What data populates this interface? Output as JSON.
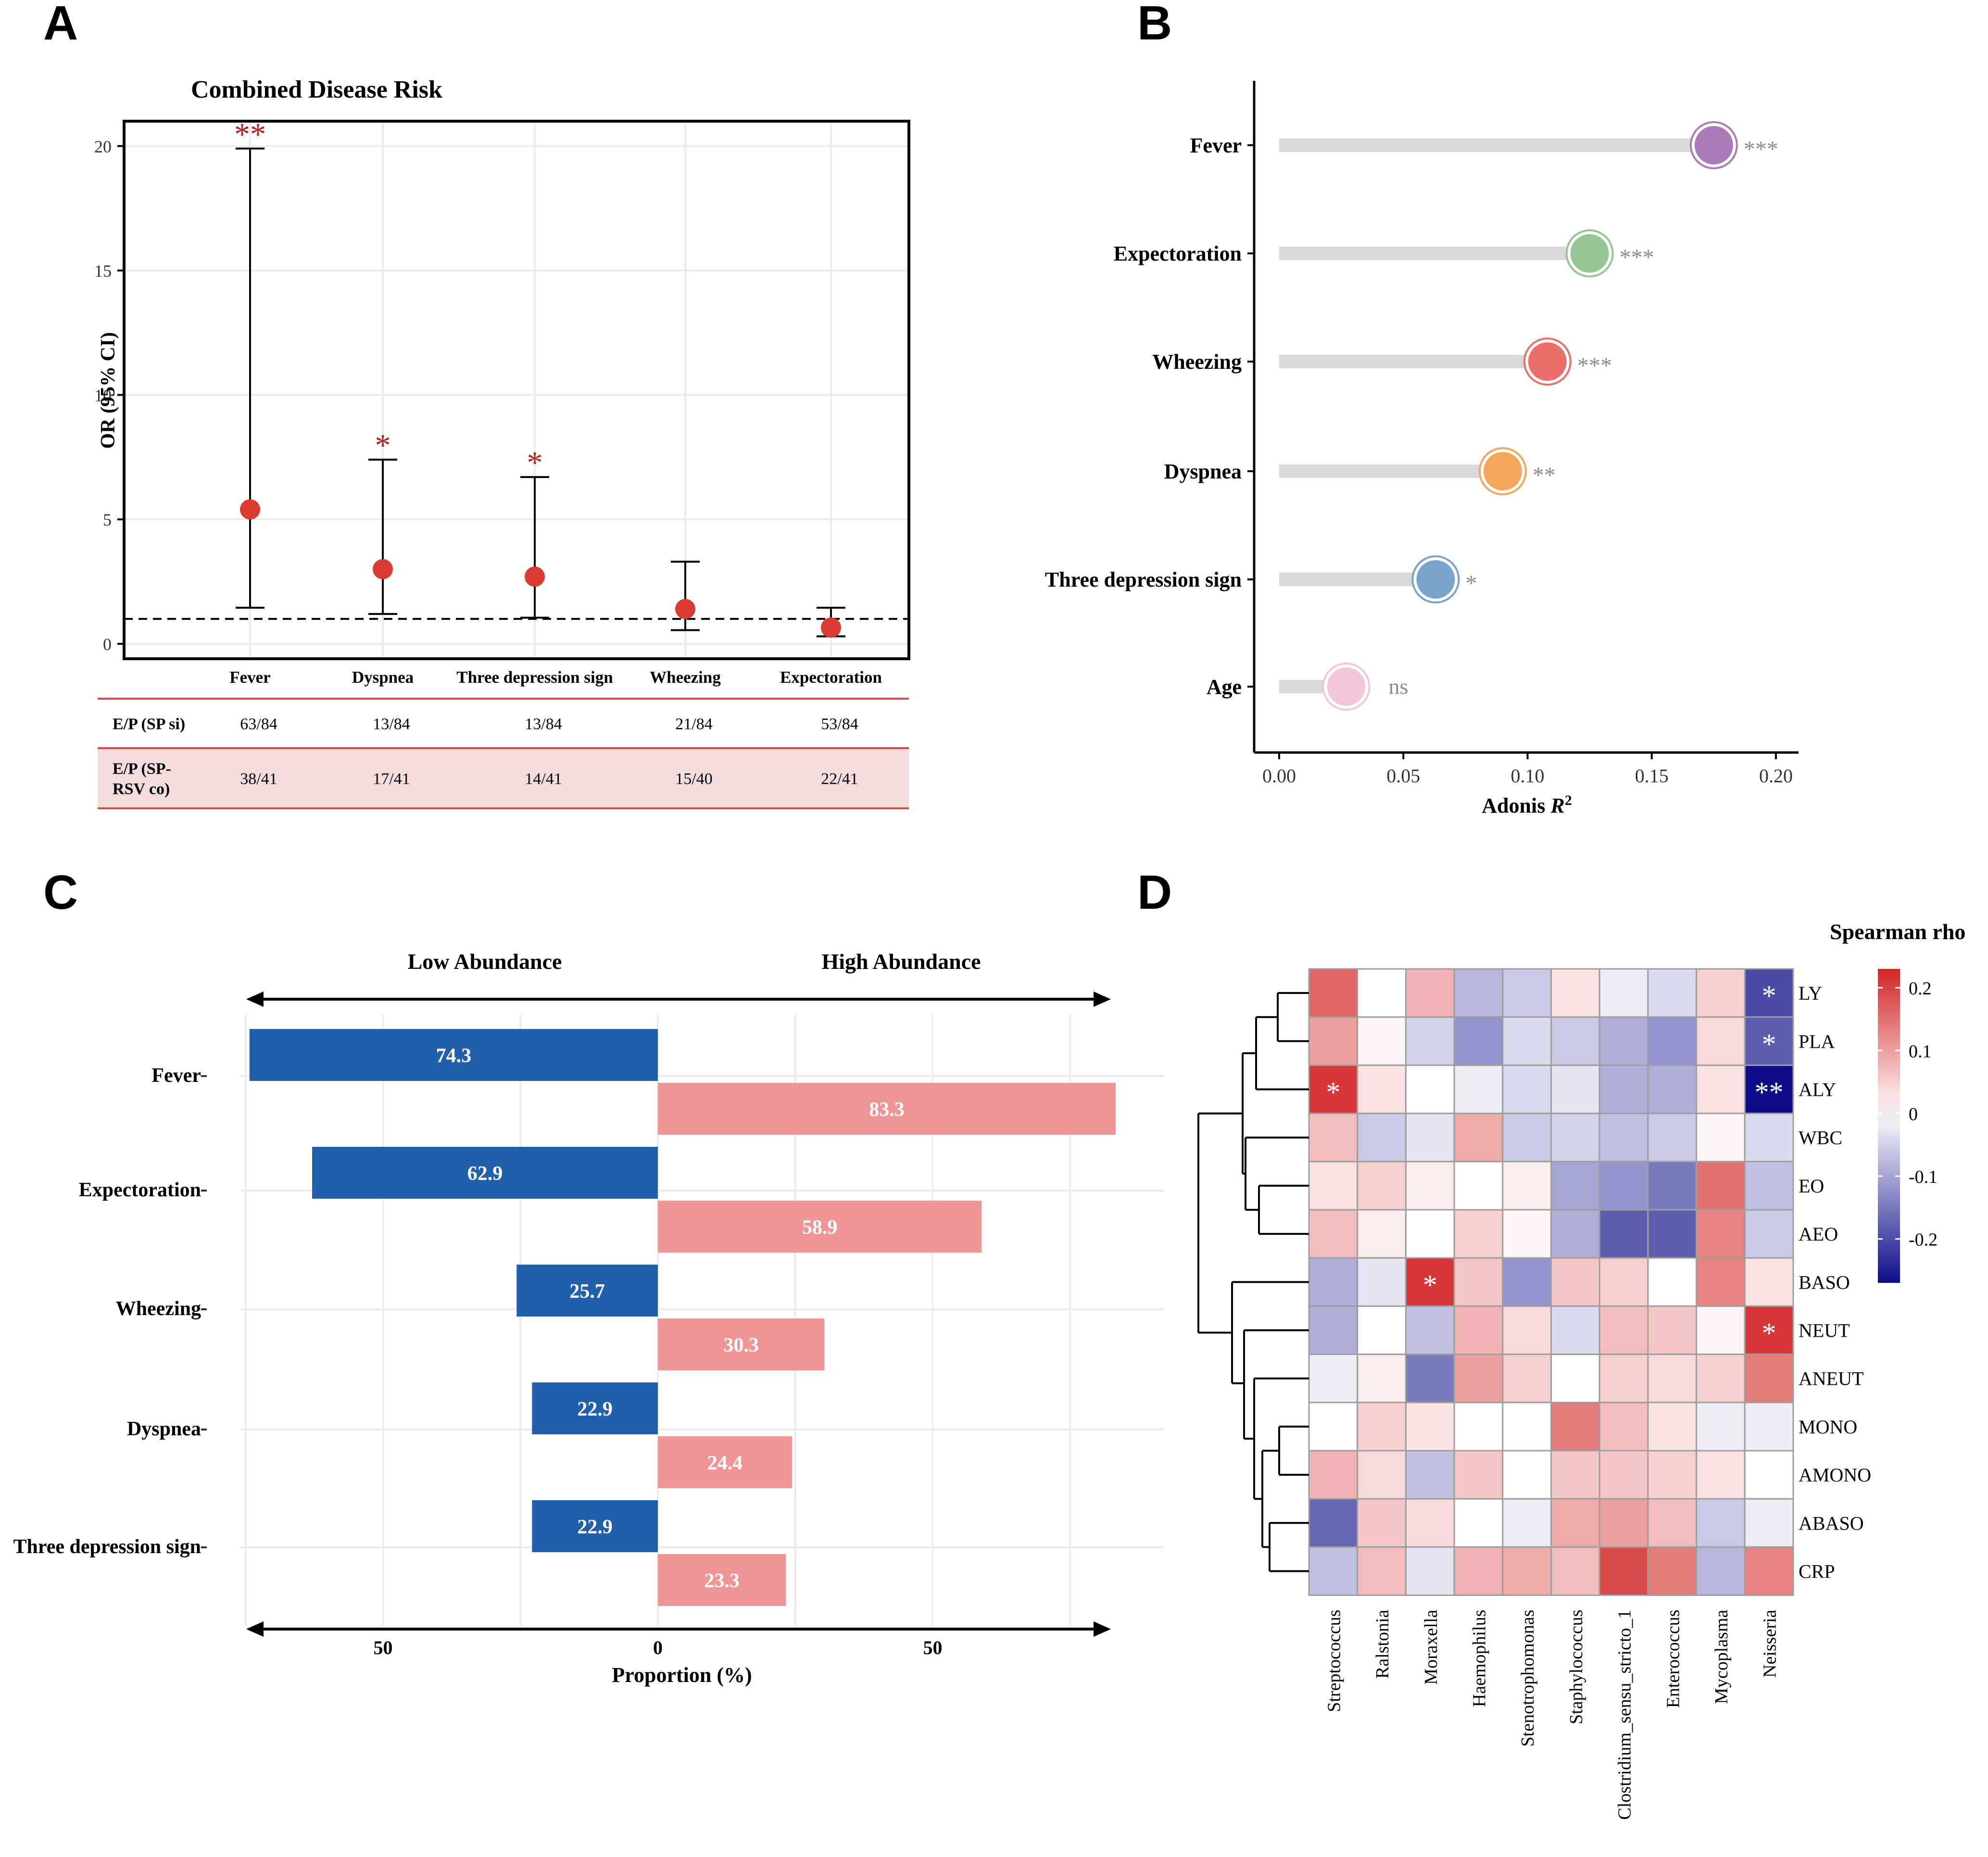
{
  "panel_labels": [
    "A",
    "B",
    "C",
    "D"
  ],
  "chart_data": [
    {
      "panel": "A",
      "type": "scatter",
      "title": "Combined Disease Risk",
      "ylabel": "OR (95% CI)",
      "ylim": [
        -0.6,
        21
      ],
      "yticks": [
        0,
        5,
        10,
        15,
        20
      ],
      "reference_line": 1,
      "categories": [
        "Fever",
        "Dyspnea",
        "Three depression sign",
        "Wheezing",
        "Expectoration"
      ],
      "or": [
        5.4,
        3.0,
        2.7,
        1.4,
        0.65
      ],
      "ci_low": [
        1.45,
        1.2,
        1.05,
        0.55,
        0.3
      ],
      "ci_high": [
        19.9,
        7.4,
        6.7,
        3.3,
        1.45
      ],
      "significance": [
        "**",
        "*",
        "*",
        "",
        ""
      ],
      "table": {
        "rows": [
          {
            "header": [
              "E/P (SP si)"
            ],
            "values": [
              "63/84",
              "13/84",
              "13/84",
              "21/84",
              "53/84"
            ]
          },
          {
            "header": [
              "E/P (SP-",
              "RSV co)"
            ],
            "values": [
              "38/41",
              "17/41",
              "14/41",
              "15/40",
              "22/41"
            ]
          }
        ]
      },
      "colors": {
        "point": "#d93a32",
        "star": "#b32222",
        "row_fill": "#f3dcdc",
        "row_line": "#d84a4a"
      }
    },
    {
      "panel": "B",
      "type": "scatter",
      "subtype": "lollipop",
      "xlabel": "Adonis R²",
      "xlabel_main": "Adonis ",
      "xlabel_italic": "R",
      "xlabel_sup": "2",
      "xlim": [
        -0.0055,
        0.2085
      ],
      "xticks": [
        0.0,
        0.05,
        0.1,
        0.15,
        0.2
      ],
      "xtick_labels": [
        "0.00",
        "0.05",
        "0.10",
        "0.15",
        "0.20"
      ],
      "categories": [
        "Fever",
        "Expectoration",
        "Wheezing",
        "Dyspnea",
        "Three depression sign",
        "Age"
      ],
      "values": [
        0.175,
        0.125,
        0.108,
        0.09,
        0.063,
        0.027
      ],
      "significance": [
        "***",
        "***",
        "***",
        "**",
        "*",
        "ns"
      ],
      "point_colors": [
        "#a97bb9",
        "#95c592",
        "#ea6e6a",
        "#f4a65b",
        "#7aa3cc",
        "#f4c6dc"
      ]
    },
    {
      "panel": "C",
      "type": "bar",
      "orientation": "horizontal",
      "xlabel": "Proportion (%)",
      "left_header": "Low Abundance",
      "right_header": "High Abundance",
      "xticks": [
        50,
        0,
        50
      ],
      "categories": [
        "Fever",
        "Expectoration",
        "Wheezing",
        "Dyspnea",
        "Three depression sign"
      ],
      "series": [
        {
          "name": "Low Abundance",
          "values": [
            74.3,
            62.9,
            25.7,
            22.9,
            22.9
          ],
          "color": "#2360ab"
        },
        {
          "name": "High Abundance",
          "values": [
            83.3,
            58.9,
            30.3,
            24.4,
            23.3
          ],
          "color": "#f09595"
        }
      ],
      "xlim": [
        -75,
        85
      ]
    },
    {
      "panel": "D",
      "type": "heatmap",
      "legend_title": "Spearman rho",
      "legend_ticks": [
        0.2,
        0.1,
        0,
        -0.1,
        -0.2
      ],
      "legend_tick_labels": [
        "0.2",
        "0.1",
        "0",
        "-0.1",
        "-0.2"
      ],
      "legend_range": [
        -0.27,
        0.23
      ],
      "rows": [
        "LY",
        "PLA",
        "ALY",
        "WBC",
        "EO",
        "AEO",
        "BASO",
        "NEUT",
        "ANEUT",
        "MONO",
        "AMONO",
        "ABASO",
        "CRP"
      ],
      "columns": [
        "Streptococcus",
        "Ralstonia",
        "Moraxella",
        "Haemophilus",
        "Stenotrophomonas",
        "Staphylococcus",
        "Clostridium_sensu_stricto_1",
        "Enterococcus",
        "Mycoplasma",
        "Neisseria"
      ],
      "values": [
        [
          0.16,
          0.0,
          0.08,
          -0.08,
          -0.06,
          0.03,
          -0.02,
          -0.04,
          0.05,
          -0.2
        ],
        [
          0.1,
          0.01,
          -0.05,
          -0.12,
          -0.04,
          -0.06,
          -0.09,
          -0.12,
          0.04,
          -0.18
        ],
        [
          0.21,
          0.03,
          0.0,
          -0.02,
          -0.04,
          -0.03,
          -0.09,
          -0.09,
          0.03,
          -0.27
        ],
        [
          0.07,
          -0.06,
          -0.03,
          0.09,
          -0.06,
          -0.05,
          -0.07,
          -0.06,
          0.01,
          -0.04
        ],
        [
          0.03,
          0.05,
          0.02,
          0.0,
          0.02,
          -0.1,
          -0.12,
          -0.15,
          0.15,
          -0.07
        ],
        [
          0.07,
          0.02,
          0.0,
          0.05,
          0.01,
          -0.09,
          -0.18,
          -0.18,
          0.13,
          -0.06
        ],
        [
          -0.09,
          -0.03,
          0.21,
          0.06,
          -0.12,
          0.06,
          0.05,
          0.0,
          0.13,
          0.03
        ],
        [
          -0.09,
          0.0,
          -0.07,
          0.08,
          0.04,
          -0.04,
          0.07,
          0.06,
          0.01,
          0.21
        ],
        [
          -0.02,
          0.02,
          -0.15,
          0.1,
          0.05,
          0.0,
          0.05,
          0.04,
          0.05,
          0.14
        ],
        [
          0.0,
          0.05,
          0.03,
          0.0,
          0.0,
          0.14,
          0.07,
          0.03,
          -0.02,
          -0.02
        ],
        [
          0.08,
          0.04,
          -0.07,
          0.06,
          0.0,
          0.06,
          0.06,
          0.05,
          0.03,
          0.0
        ],
        [
          -0.17,
          0.06,
          0.04,
          0.0,
          -0.02,
          0.09,
          0.1,
          0.07,
          -0.06,
          -0.02
        ],
        [
          -0.07,
          0.07,
          -0.03,
          0.08,
          0.09,
          0.07,
          0.19,
          0.14,
          -0.08,
          0.13
        ]
      ],
      "significance": [
        [
          "",
          "",
          "",
          "",
          "",
          "",
          "",
          "",
          "",
          "*"
        ],
        [
          "",
          "",
          "",
          "",
          "",
          "",
          "",
          "",
          "",
          "*"
        ],
        [
          "*",
          "",
          "",
          "",
          "",
          "",
          "",
          "",
          "",
          "**"
        ],
        [
          "",
          "",
          "",
          "",
          "",
          "",
          "",
          "",
          "",
          ""
        ],
        [
          "",
          "",
          "",
          "",
          "",
          "",
          "",
          "",
          "",
          ""
        ],
        [
          "",
          "",
          "",
          "",
          "",
          "",
          "",
          "",
          "",
          ""
        ],
        [
          "",
          "",
          "*",
          "",
          "",
          "",
          "",
          "",
          "",
          ""
        ],
        [
          "",
          "",
          "",
          "",
          "",
          "",
          "",
          "",
          "",
          "*"
        ],
        [
          "",
          "",
          "",
          "",
          "",
          "",
          "",
          "",
          "",
          ""
        ],
        [
          "",
          "",
          "",
          "",
          "",
          "",
          "",
          "",
          "",
          ""
        ],
        [
          "",
          "",
          "",
          "",
          "",
          "",
          "",
          "",
          "",
          ""
        ],
        [
          "",
          "",
          "",
          "",
          "",
          "",
          "",
          "",
          "",
          ""
        ],
        [
          "",
          "",
          "",
          "",
          "",
          "",
          "",
          "",
          "",
          ""
        ]
      ]
    }
  ]
}
